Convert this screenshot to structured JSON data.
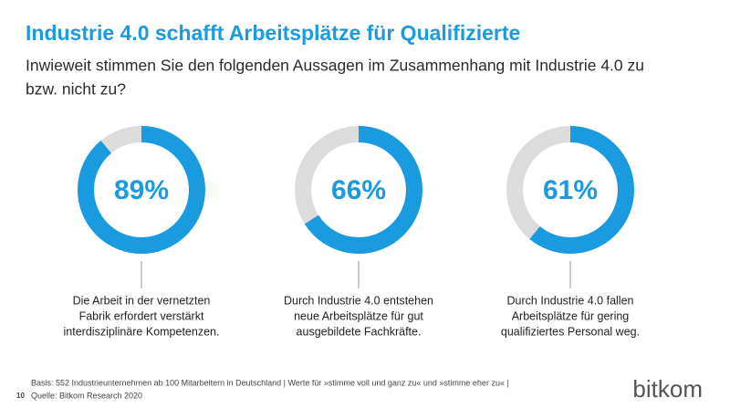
{
  "title": "Industrie 4.0 schafft Arbeitsplätze für Qualifizierte",
  "subtitle": [
    "Inwieweit stimmen Sie den folgenden Aussagen im Zusammenhang mit Industrie 4.0 zu",
    "bzw. nicht zu?"
  ],
  "chart_data": [
    {
      "type": "donut",
      "values": [
        89
      ],
      "value_labels": [
        "89%"
      ],
      "color": "#1a9be0",
      "track_color": "#dcdcdc",
      "caption": [
        "Die Arbeit in der vernetzten",
        "Fabrik erfordert verstärkt",
        "interdisziplinäre Kompetenzen."
      ]
    },
    {
      "type": "donut",
      "values": [
        66
      ],
      "value_labels": [
        "66%"
      ],
      "color": "#1a9be0",
      "track_color": "#dcdcdc",
      "caption": [
        "Durch Industrie 4.0 entstehen",
        "neue Arbeitsplätze für gut",
        "ausgebildete Fachkräfte."
      ]
    },
    {
      "type": "donut",
      "values": [
        61
      ],
      "value_labels": [
        "61%"
      ],
      "color": "#1a9be0",
      "track_color": "#dcdcdc",
      "caption": [
        "Durch Industrie 4.0 fallen",
        "Arbeitsplätze für gering",
        "qualifiziertes Personal weg."
      ]
    }
  ],
  "footer": {
    "basis": "Basis: 552 Industrieunternehmen ab 100 Mitarbeitern in Deutschland | Werte für »stimme voll und ganz zu« und »stimme eher zu« |",
    "source": "Quelle: Bitkom Research 2020",
    "page": "10"
  },
  "logo": "bitkom"
}
